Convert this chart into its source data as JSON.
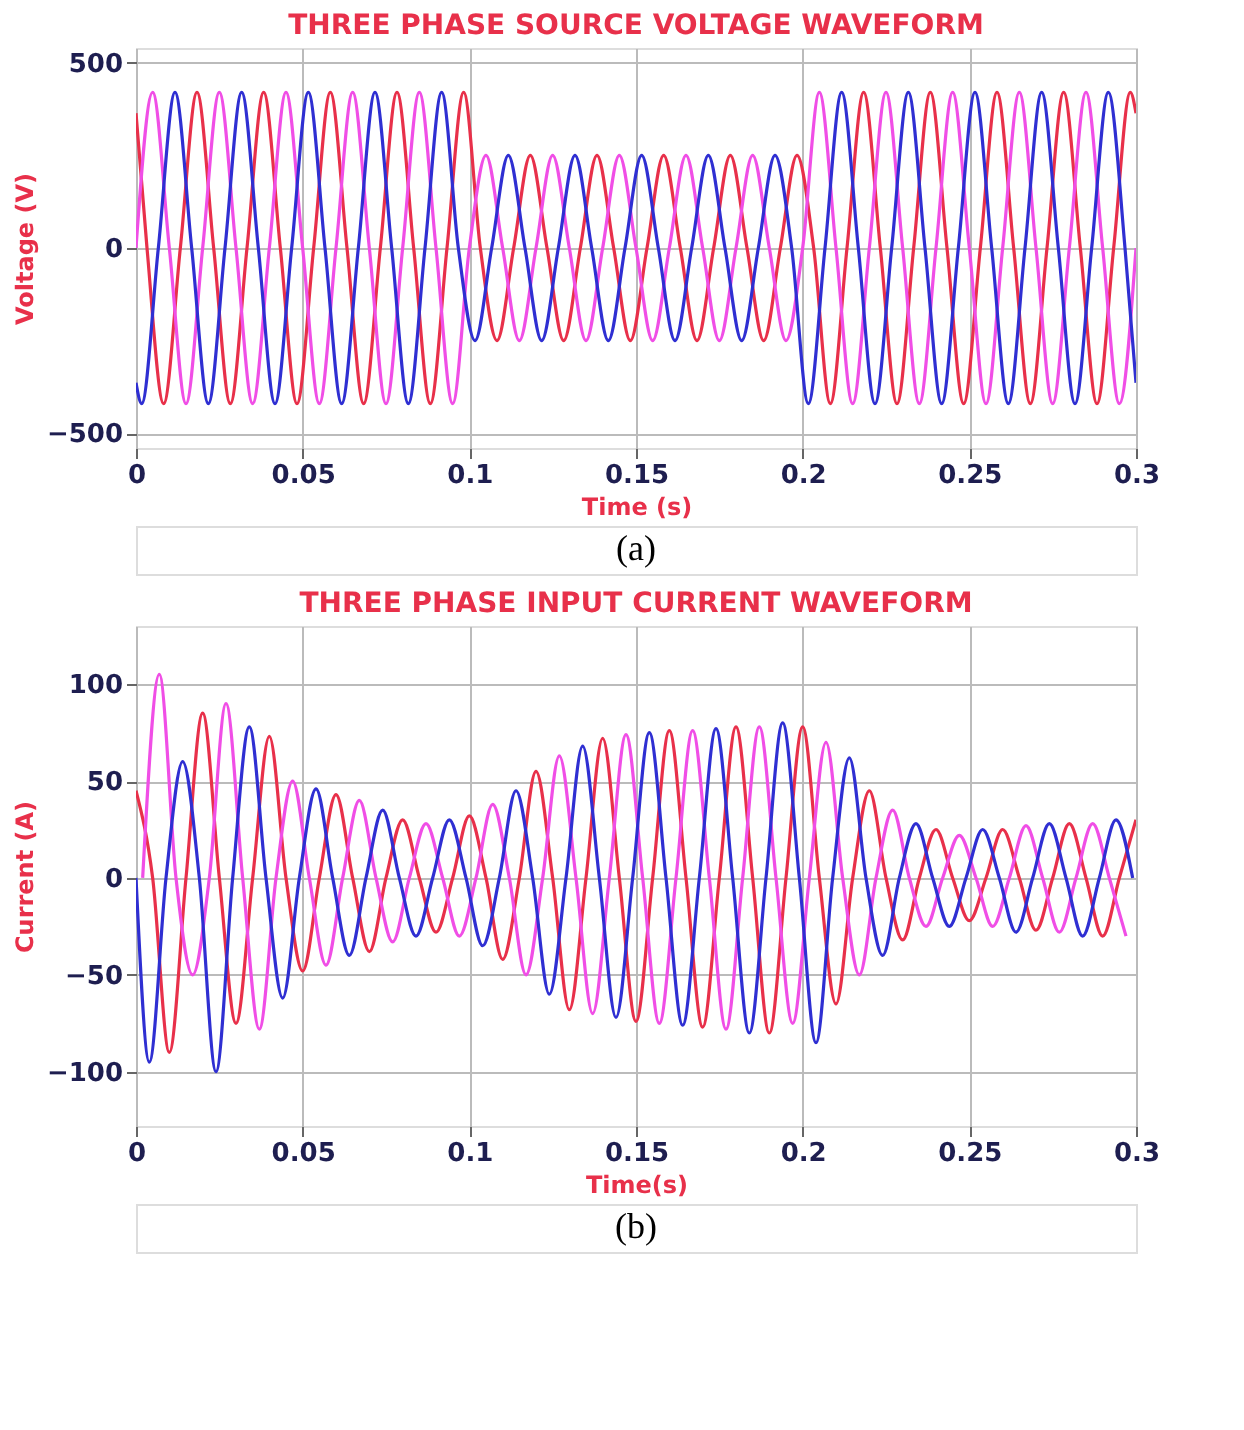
{
  "chart_data": [
    {
      "type": "line",
      "title": "THREE PHASE SOURCE VOLTAGE WAVEFORM",
      "xlabel": "Time (s)",
      "ylabel": "Voltage (V)",
      "xlim": [
        0,
        0.3
      ],
      "ylim": [
        -540,
        540
      ],
      "xticks": [
        0,
        0.05,
        0.1,
        0.15,
        0.2,
        0.25,
        0.3
      ],
      "yticks": [
        -500,
        0,
        500
      ],
      "grid": true,
      "annotations": [
        "(a)"
      ],
      "series": [
        {
          "color": "#e8304a",
          "x": [
            0,
            0.0033,
            0.0083,
            0.0133,
            0.0183,
            0.0233,
            0.0283,
            0.0333,
            0.0383,
            0.0433,
            0.0483,
            0.0533,
            0.0583,
            0.0633,
            0.0683,
            0.0733,
            0.0783,
            0.0833,
            0.0883,
            0.0933,
            0.0983,
            0.1033,
            0.1083,
            0.1133,
            0.1183,
            0.1233,
            0.1283,
            0.1333,
            0.1383,
            0.1433,
            0.1483,
            0.1533,
            0.1583,
            0.1633,
            0.1683,
            0.1733,
            0.1783,
            0.1833,
            0.1883,
            0.1933,
            0.1983,
            0.2033,
            0.2083,
            0.2133,
            0.2183,
            0.2233,
            0.2283,
            0.2333,
            0.2383,
            0.2433,
            0.2483,
            0.2533,
            0.2583,
            0.2633,
            0.2683,
            0.2733,
            0.2783,
            0.2833,
            0.2883,
            0.2933,
            0.2983,
            0.3
          ],
          "values": [
            364,
            0,
            -420,
            0,
            420,
            0,
            -420,
            0,
            420,
            0,
            -420,
            0,
            420,
            0,
            -420,
            0,
            420,
            0,
            -420,
            0,
            420,
            0,
            -250,
            0,
            250,
            0,
            -250,
            0,
            250,
            0,
            -250,
            0,
            250,
            0,
            -250,
            0,
            250,
            0,
            -250,
            0,
            250,
            0,
            -420,
            0,
            420,
            0,
            -420,
            0,
            420,
            0,
            -420,
            0,
            420,
            0,
            -420,
            0,
            420,
            0,
            -420,
            0,
            420,
            364
          ]
        },
        {
          "color": "#f04ee6",
          "x": [
            0,
            0.005,
            0.01,
            0.015,
            0.02,
            0.025,
            0.03,
            0.035,
            0.04,
            0.045,
            0.05,
            0.055,
            0.06,
            0.065,
            0.07,
            0.075,
            0.08,
            0.085,
            0.09,
            0.095,
            0.1,
            0.105,
            0.11,
            0.115,
            0.12,
            0.125,
            0.13,
            0.135,
            0.14,
            0.145,
            0.15,
            0.155,
            0.16,
            0.165,
            0.17,
            0.175,
            0.18,
            0.185,
            0.19,
            0.195,
            0.2,
            0.205,
            0.21,
            0.215,
            0.22,
            0.225,
            0.23,
            0.235,
            0.24,
            0.245,
            0.25,
            0.255,
            0.26,
            0.265,
            0.27,
            0.275,
            0.28,
            0.285,
            0.29,
            0.295,
            0.3
          ],
          "values": [
            0,
            420,
            0,
            -420,
            0,
            420,
            0,
            -420,
            0,
            420,
            0,
            -420,
            0,
            420,
            0,
            -420,
            0,
            420,
            0,
            -420,
            0,
            250,
            0,
            -250,
            0,
            250,
            0,
            -250,
            0,
            250,
            0,
            -250,
            0,
            250,
            0,
            -250,
            0,
            250,
            0,
            -250,
            0,
            420,
            0,
            -420,
            0,
            420,
            0,
            -420,
            0,
            420,
            0,
            -420,
            0,
            420,
            0,
            -420,
            0,
            420,
            0,
            -420,
            0
          ]
        },
        {
          "color": "#2f2fd2",
          "x": [
            0,
            0.0017,
            0.0067,
            0.0117,
            0.0167,
            0.0217,
            0.0267,
            0.0317,
            0.0367,
            0.0417,
            0.0467,
            0.0517,
            0.0567,
            0.0617,
            0.0667,
            0.0717,
            0.0767,
            0.0817,
            0.0867,
            0.0917,
            0.0967,
            0.1017,
            0.1067,
            0.1117,
            0.1167,
            0.1217,
            0.1267,
            0.1317,
            0.1367,
            0.1417,
            0.1467,
            0.1517,
            0.1567,
            0.1617,
            0.1667,
            0.1717,
            0.1767,
            0.1817,
            0.1867,
            0.1917,
            0.1967,
            0.2017,
            0.2067,
            0.2117,
            0.2167,
            0.2217,
            0.2267,
            0.2317,
            0.2367,
            0.2417,
            0.2467,
            0.2517,
            0.2567,
            0.2617,
            0.2667,
            0.2717,
            0.2767,
            0.2817,
            0.2867,
            0.2917,
            0.2967,
            0.3
          ],
          "values": [
            -364,
            -420,
            0,
            420,
            0,
            -420,
            0,
            420,
            0,
            -420,
            0,
            420,
            0,
            -420,
            0,
            420,
            0,
            -420,
            0,
            420,
            0,
            -250,
            0,
            250,
            0,
            -250,
            0,
            250,
            0,
            -250,
            0,
            250,
            0,
            -250,
            0,
            250,
            0,
            -250,
            0,
            250,
            0,
            -420,
            0,
            420,
            0,
            -420,
            0,
            420,
            0,
            -420,
            0,
            420,
            0,
            -420,
            0,
            420,
            0,
            -420,
            0,
            420,
            0,
            -364
          ]
        }
      ]
    },
    {
      "type": "line",
      "title": "THREE PHASE INPUT CURRENT WAVEFORM",
      "xlabel": "Time(s)",
      "ylabel": "Current (A)",
      "xlim": [
        0,
        0.3
      ],
      "ylim": [
        -128,
        130
      ],
      "xticks": [
        0,
        0.05,
        0.1,
        0.15,
        0.2,
        0.25,
        0.3
      ],
      "yticks": [
        -100,
        -50,
        0,
        50,
        100
      ],
      "grid": true,
      "annotations": [
        "(b)"
      ],
      "series": [
        {
          "color": "#e8304a",
          "x": [
            0,
            0.005,
            0.01,
            0.015,
            0.02,
            0.025,
            0.03,
            0.035,
            0.04,
            0.045,
            0.05,
            0.055,
            0.06,
            0.065,
            0.07,
            0.075,
            0.08,
            0.085,
            0.09,
            0.095,
            0.1,
            0.105,
            0.11,
            0.115,
            0.12,
            0.125,
            0.13,
            0.135,
            0.14,
            0.145,
            0.15,
            0.155,
            0.16,
            0.165,
            0.17,
            0.175,
            0.18,
            0.185,
            0.19,
            0.195,
            0.2,
            0.205,
            0.21,
            0.215,
            0.22,
            0.225,
            0.23,
            0.235,
            0.24,
            0.245,
            0.25,
            0.255,
            0.26,
            0.265,
            0.27,
            0.275,
            0.28,
            0.285,
            0.29,
            0.295,
            0.3
          ],
          "values": [
            45,
            0,
            -90,
            0,
            85,
            0,
            -75,
            0,
            73,
            0,
            -48,
            0,
            43,
            0,
            -38,
            0,
            30,
            0,
            -28,
            0,
            32,
            0,
            -42,
            0,
            55,
            0,
            -68,
            0,
            72,
            0,
            -74,
            0,
            76,
            0,
            -77,
            0,
            78,
            0,
            -80,
            0,
            78,
            0,
            -65,
            0,
            45,
            0,
            -32,
            0,
            25,
            0,
            -22,
            0,
            25,
            0,
            -27,
            0,
            28,
            0,
            -30,
            0,
            30
          ]
        },
        {
          "color": "#f04ee6",
          "x": [
            0.002,
            0.007,
            0.012,
            0.017,
            0.022,
            0.027,
            0.032,
            0.037,
            0.042,
            0.047,
            0.052,
            0.057,
            0.062,
            0.067,
            0.072,
            0.077,
            0.082,
            0.087,
            0.092,
            0.097,
            0.102,
            0.107,
            0.112,
            0.117,
            0.122,
            0.127,
            0.132,
            0.137,
            0.142,
            0.147,
            0.152,
            0.157,
            0.162,
            0.167,
            0.172,
            0.177,
            0.182,
            0.187,
            0.192,
            0.197,
            0.202,
            0.207,
            0.212,
            0.217,
            0.222,
            0.227,
            0.232,
            0.237,
            0.242,
            0.247,
            0.252,
            0.257,
            0.262,
            0.267,
            0.272,
            0.277,
            0.282,
            0.287,
            0.292,
            0.297
          ],
          "values": [
            0,
            105,
            0,
            -50,
            0,
            90,
            0,
            -78,
            0,
            50,
            0,
            -45,
            0,
            40,
            0,
            -33,
            0,
            28,
            0,
            -30,
            0,
            38,
            0,
            -50,
            0,
            63,
            0,
            -70,
            0,
            74,
            0,
            -75,
            0,
            76,
            0,
            -78,
            0,
            78,
            0,
            -75,
            0,
            70,
            0,
            -50,
            0,
            35,
            0,
            -25,
            0,
            22,
            0,
            -25,
            0,
            27,
            0,
            -28,
            0,
            28,
            0,
            -30
          ]
        },
        {
          "color": "#2f2fd2",
          "x": [
            0,
            0.004,
            0.009,
            0.014,
            0.019,
            0.024,
            0.029,
            0.034,
            0.039,
            0.044,
            0.049,
            0.054,
            0.059,
            0.064,
            0.069,
            0.074,
            0.079,
            0.084,
            0.089,
            0.094,
            0.099,
            0.104,
            0.109,
            0.114,
            0.119,
            0.124,
            0.129,
            0.134,
            0.139,
            0.144,
            0.149,
            0.154,
            0.159,
            0.164,
            0.169,
            0.174,
            0.179,
            0.184,
            0.189,
            0.194,
            0.199,
            0.204,
            0.209,
            0.214,
            0.219,
            0.224,
            0.229,
            0.234,
            0.239,
            0.244,
            0.249,
            0.254,
            0.259,
            0.264,
            0.269,
            0.274,
            0.279,
            0.284,
            0.289,
            0.294,
            0.299
          ],
          "values": [
            0,
            -95,
            0,
            60,
            0,
            -100,
            0,
            78,
            0,
            -62,
            0,
            46,
            0,
            -40,
            0,
            35,
            0,
            -30,
            0,
            30,
            0,
            -35,
            0,
            45,
            0,
            -60,
            0,
            68,
            0,
            -72,
            0,
            75,
            0,
            -76,
            0,
            77,
            0,
            -80,
            0,
            80,
            0,
            -85,
            0,
            62,
            0,
            -40,
            0,
            28,
            0,
            -25,
            0,
            25,
            0,
            -28,
            0,
            28,
            0,
            -30,
            0,
            30,
            0
          ]
        }
      ]
    }
  ]
}
